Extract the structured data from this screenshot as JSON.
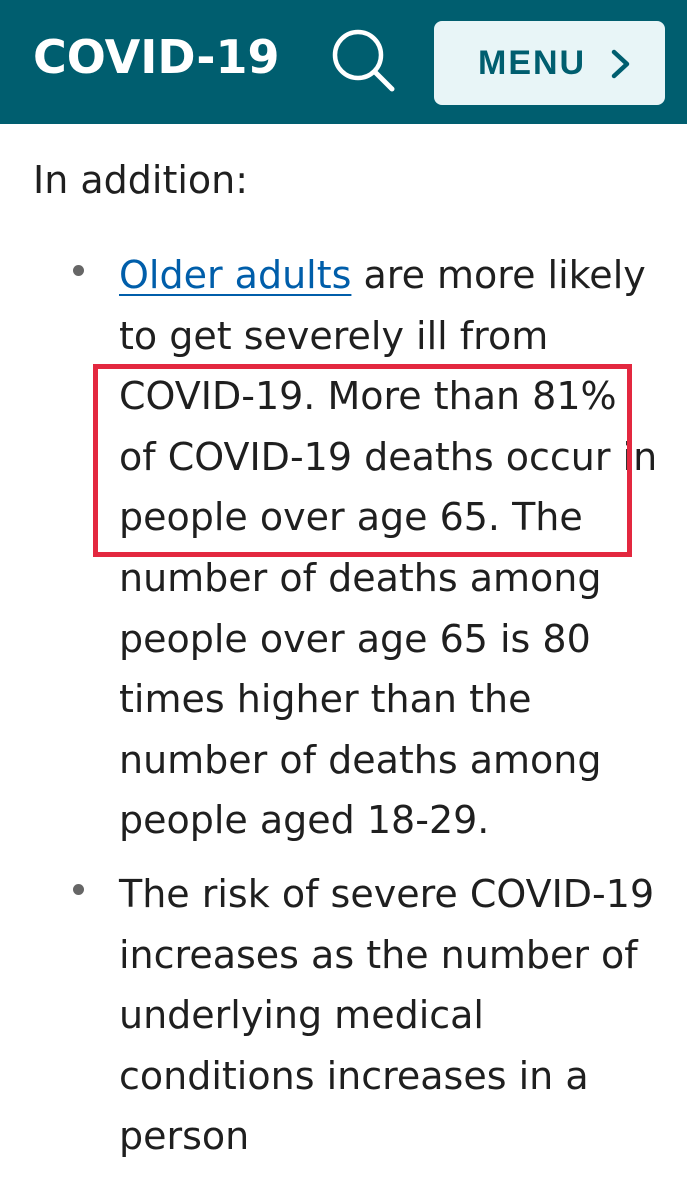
{
  "header": {
    "title": "COVID-19",
    "menu_label": "MENU",
    "search_icon": "search-icon",
    "chevron_icon": "chevron-right-icon",
    "background_color": "#005e6f",
    "menu_background_color": "#e8f5f7"
  },
  "content": {
    "intro": "In addition:",
    "bullets": [
      {
        "link_text": "Older adults",
        "line1_rest": " are more likely",
        "lines": [
          "to get severely ill from",
          "COVID-19. More than 81%",
          "of COVID-19 deaths occur in",
          "people over age 65. The",
          "number of deaths among",
          "people over age 65 is 80",
          "times higher than the",
          "number of deaths among",
          "people aged 18-29."
        ]
      },
      {
        "lines": [
          "The risk of severe COVID-19",
          "increases as the number of",
          "underlying medical",
          "conditions increases in a",
          "person"
        ]
      }
    ],
    "link_color": "#005eaa",
    "highlight_color": "#e3283f"
  }
}
